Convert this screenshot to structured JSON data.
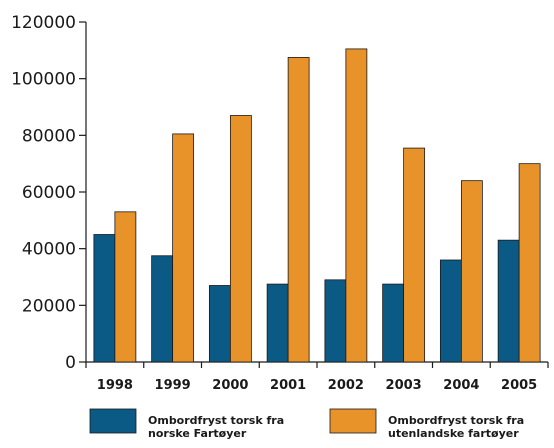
{
  "chart_data": {
    "type": "bar",
    "categories": [
      "1998",
      "1999",
      "2000",
      "2001",
      "2002",
      "2003",
      "2004",
      "2005"
    ],
    "series": [
      {
        "name_lines": [
          "Ombordfryst torsk fra",
          "norske Fartøyer"
        ],
        "color": "#0b5a86",
        "values": [
          45000,
          37500,
          27000,
          27500,
          29000,
          27500,
          36000,
          43000
        ]
      },
      {
        "name_lines": [
          "Ombordfryst torsk fra",
          "utenlandske fartøyer"
        ],
        "color": "#e8922a",
        "values": [
          53000,
          80500,
          87000,
          107500,
          110500,
          75500,
          64000,
          70000
        ]
      }
    ],
    "ylim": [
      0,
      120000
    ],
    "yticks": [
      "0",
      "20000",
      "40000",
      "60000",
      "80000",
      "100000",
      "120000"
    ],
    "legend_position": "bottom",
    "grid": false
  }
}
